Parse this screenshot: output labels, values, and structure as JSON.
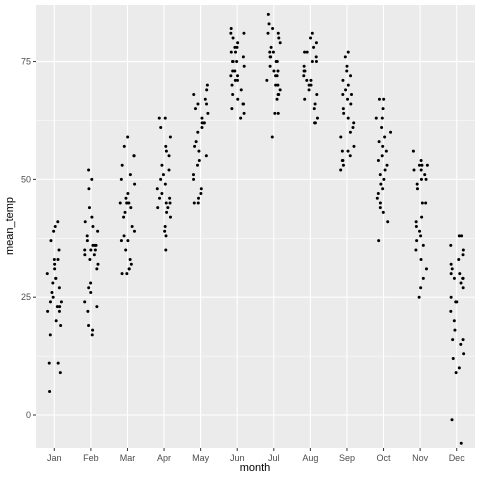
{
  "chart_data": {
    "type": "scatter",
    "title": "",
    "xlabel": "month",
    "ylabel": "mean_temp",
    "categories": [
      "Jan",
      "Feb",
      "Mar",
      "Apr",
      "May",
      "Jun",
      "Jul",
      "Aug",
      "Sep",
      "Oct",
      "Nov",
      "Dec"
    ],
    "yticks": [
      0,
      25,
      50,
      75
    ],
    "ylim": [
      -7,
      87
    ],
    "grid": true,
    "jitter": "horizontal",
    "series": [
      {
        "values": [
          [
            41,
            40,
            39,
            37,
            35,
            33,
            33,
            32,
            31,
            30,
            29,
            29,
            28,
            27,
            26,
            25,
            24,
            24,
            23,
            23,
            22,
            22,
            20,
            19,
            17,
            11,
            11,
            9,
            5
          ],
          [
            52,
            50,
            48,
            44,
            42,
            41,
            40,
            39,
            38,
            37,
            36,
            36,
            36,
            35,
            35,
            35,
            34,
            34,
            33,
            32,
            31,
            28,
            27,
            26,
            24,
            23,
            22,
            19,
            18,
            17
          ],
          [
            59,
            57,
            55,
            55,
            53,
            51,
            50,
            49,
            47,
            46,
            45,
            45,
            45,
            45,
            44,
            43,
            42,
            40,
            39,
            38,
            37,
            37,
            35,
            33,
            32,
            31,
            31,
            30,
            30
          ],
          [
            63,
            63,
            61,
            59,
            57,
            56,
            55,
            53,
            52,
            51,
            50,
            49,
            48,
            47,
            46,
            46,
            45,
            45,
            44,
            44,
            43,
            42,
            40,
            39,
            38,
            35
          ],
          [
            70,
            69,
            68,
            67,
            66,
            66,
            65,
            64,
            63,
            62,
            62,
            62,
            61,
            60,
            58,
            57,
            56,
            55,
            54,
            53,
            51,
            50,
            48,
            47,
            46,
            45,
            45
          ],
          [
            82,
            81,
            81,
            80,
            79,
            78,
            78,
            77,
            77,
            76,
            75,
            75,
            75,
            74,
            73,
            73,
            72,
            72,
            71,
            71,
            70,
            69,
            68,
            67,
            66,
            66,
            65,
            64,
            63
          ],
          [
            85,
            83,
            82,
            81,
            81,
            80,
            79,
            78,
            77,
            77,
            76,
            76,
            75,
            75,
            74,
            73,
            73,
            72,
            72,
            71,
            70,
            70,
            69,
            68,
            68,
            67,
            64,
            64,
            59
          ],
          [
            81,
            80,
            79,
            78,
            77,
            77,
            76,
            75,
            75,
            74,
            73,
            73,
            72,
            71,
            71,
            70,
            70,
            69,
            68,
            67,
            66,
            65,
            63,
            62,
            62
          ],
          [
            77,
            76,
            74,
            73,
            72,
            71,
            70,
            69,
            68,
            68,
            67,
            66,
            65,
            64,
            63,
            62,
            61,
            60,
            59,
            57,
            56,
            56,
            55,
            54,
            54,
            53,
            52
          ],
          [
            67,
            67,
            65,
            63,
            63,
            61,
            60,
            59,
            58,
            57,
            56,
            55,
            54,
            53,
            52,
            51,
            50,
            49,
            48,
            47,
            46,
            45,
            44,
            43,
            41,
            37
          ],
          [
            56,
            54,
            53,
            53,
            53,
            52,
            52,
            51,
            50,
            50,
            49,
            48,
            45,
            45,
            42,
            41,
            40,
            39,
            38,
            37,
            36,
            35,
            33,
            31,
            29,
            27,
            25
          ],
          [
            38,
            38,
            36,
            35,
            34,
            33,
            32,
            31,
            30,
            30,
            29,
            29,
            29,
            28,
            27,
            25,
            24,
            24,
            22,
            20,
            18,
            16,
            16,
            15,
            13,
            12,
            10,
            9,
            -1,
            -6
          ]
        ]
      }
    ],
    "colors": {
      "panel": "#ebebeb",
      "grid_major": "#ffffff",
      "point": "#000000",
      "tick": "#333333",
      "tick_label": "#4d4d4d"
    }
  }
}
